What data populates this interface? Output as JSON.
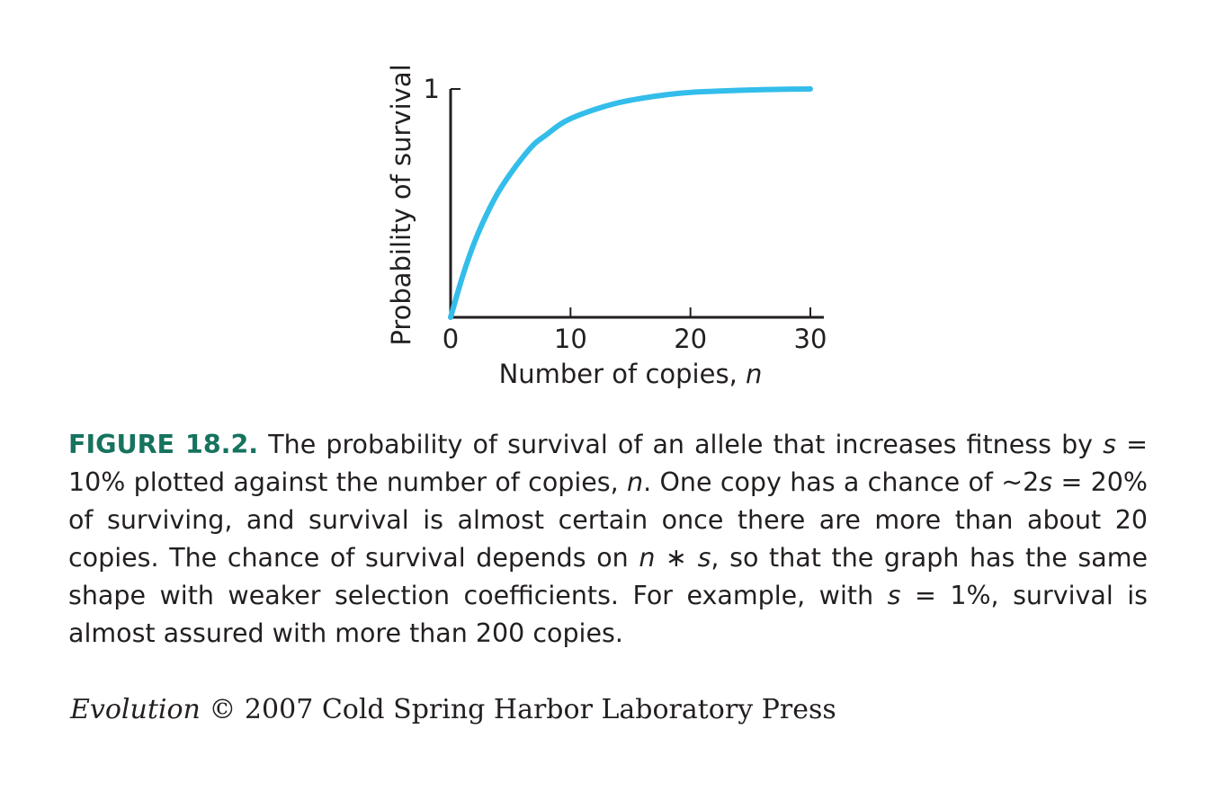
{
  "chart_data": {
    "type": "line",
    "xlabel": "Number of copies,",
    "xlabel_var": "n",
    "ylabel": "Probability of survival",
    "xlim": [
      0,
      30
    ],
    "ylim": [
      0,
      1
    ],
    "x_ticks": [
      "0",
      "10",
      "20",
      "30"
    ],
    "y_ticks": [
      "1"
    ],
    "grid": false,
    "series": [
      {
        "color": "#33bdea",
        "x": [
          0,
          1,
          2,
          3,
          4,
          5,
          6,
          7,
          8,
          9,
          10,
          12,
          14,
          16,
          18,
          20,
          22,
          24,
          26,
          28,
          30
        ],
        "y": [
          0,
          0.18,
          0.33,
          0.45,
          0.55,
          0.63,
          0.7,
          0.76,
          0.8,
          0.84,
          0.87,
          0.91,
          0.94,
          0.96,
          0.975,
          0.985,
          0.99,
          0.994,
          0.997,
          0.999,
          1.0
        ]
      }
    ]
  },
  "caption": {
    "label": "FIGURE 18.2.",
    "t1": " The probability of survival of an allele that increases fitness by ",
    "s1": "s",
    "t2": " = 10% plotted against the number of copies, ",
    "n1": "n",
    "t3": ". One copy has a chance of ~2",
    "s2": "s",
    "t4": " = 20% of surviving, and survival is almost certain once there are more than about 20 copies. The chance of survival depends on ",
    "n2": "n",
    "t5": " ∗ ",
    "s3": "s",
    "t6": ", so that the graph has the same shape with weaker selection coefficients. For example, with ",
    "s4": "s",
    "t7": " = 1%, survival is almost assured with more than 200 copies."
  },
  "credit": {
    "title": "Evolution",
    "rest": " © 2007 Cold Spring Harbor Laboratory Press"
  }
}
